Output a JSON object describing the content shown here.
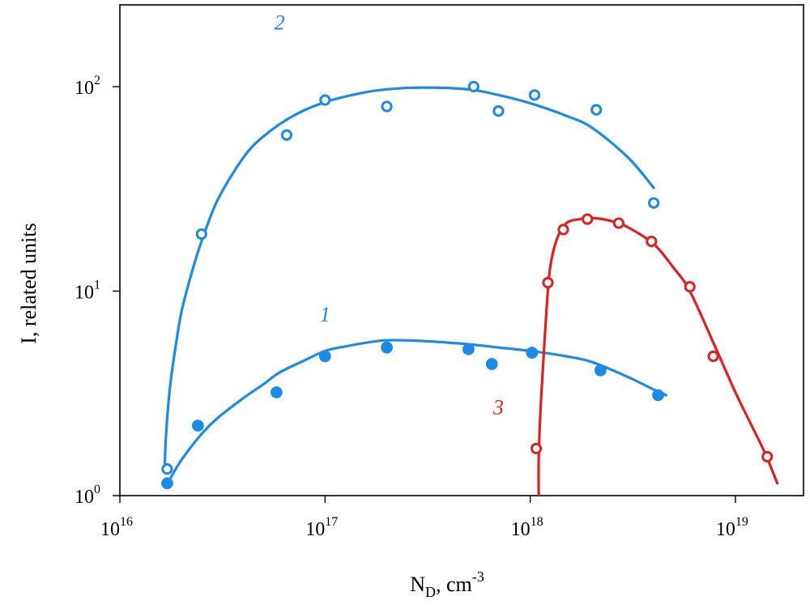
{
  "chart_data": {
    "type": "scatter",
    "title": "",
    "xlabel": {
      "base": "N",
      "sub": "D",
      "rest": ", cm",
      "sup": "-3"
    },
    "ylabel": "I, related units",
    "x_scale": "log",
    "y_scale": "log",
    "xlim": [
      1e+16,
      2e+19
    ],
    "ylim": [
      1,
      300
    ],
    "grid": false,
    "legend": "none",
    "x_ticks": [
      {
        "value": 1e+16,
        "base": "10",
        "exp": "16"
      },
      {
        "value": 1e+17,
        "base": "10",
        "exp": "17"
      },
      {
        "value": 1e+18,
        "base": "10",
        "exp": "18"
      },
      {
        "value": 1e+19,
        "base": "10",
        "exp": "19"
      }
    ],
    "y_ticks": [
      {
        "value": 1,
        "base": "10",
        "exp": "0"
      },
      {
        "value": 10,
        "base": "10",
        "exp": "1"
      },
      {
        "value": 100,
        "base": "10",
        "exp": "2"
      }
    ],
    "series": [
      {
        "label": "1",
        "color": "#1c8be6",
        "marker": "filled-circle",
        "points": [
          [
            1.7e+16,
            1.15
          ],
          [
            2.4e+16,
            2.2
          ],
          [
            5.8e+16,
            3.2
          ],
          [
            1e+17,
            4.8
          ],
          [
            2e+17,
            5.3
          ],
          [
            5e+17,
            5.2
          ],
          [
            6.5e+17,
            4.4
          ],
          [
            1.02e+18,
            5.0
          ],
          [
            2.2e+18,
            4.1
          ],
          [
            4.2e+18,
            3.1
          ]
        ],
        "fit": [
          [
            1.75e+16,
            1.2
          ],
          [
            2e+16,
            1.5
          ],
          [
            2.5e+16,
            2.0
          ],
          [
            3e+16,
            2.4
          ],
          [
            4e+16,
            3.0
          ],
          [
            5e+16,
            3.5
          ],
          [
            6e+16,
            4.0
          ],
          [
            8e+16,
            4.6
          ],
          [
            1e+17,
            5.1
          ],
          [
            1.3e+17,
            5.4
          ],
          [
            1.6e+17,
            5.6
          ],
          [
            2e+17,
            5.75
          ],
          [
            3e+17,
            5.7
          ],
          [
            5e+17,
            5.5
          ],
          [
            7e+17,
            5.3
          ],
          [
            1e+18,
            5.1
          ],
          [
            1.5e+18,
            4.8
          ],
          [
            2e+18,
            4.5
          ],
          [
            3e+18,
            3.8
          ],
          [
            4e+18,
            3.3
          ],
          [
            4.6e+18,
            3.1
          ]
        ]
      },
      {
        "label": "2",
        "color": "#1c8be6",
        "marker": "open-circle",
        "points": [
          [
            1.7e+16,
            1.35
          ],
          [
            2.5e+16,
            19
          ],
          [
            6.5e+16,
            58
          ],
          [
            1e+17,
            86
          ],
          [
            2e+17,
            80
          ],
          [
            5.3e+17,
            100
          ],
          [
            7e+17,
            76
          ],
          [
            1.05e+18,
            91
          ],
          [
            2.1e+18,
            77
          ],
          [
            4e+18,
            27
          ]
        ],
        "fit": [
          [
            1.65e+16,
            1.3
          ],
          [
            1.68e+16,
            2.0
          ],
          [
            1.75e+16,
            3.3
          ],
          [
            1.85e+16,
            5.0
          ],
          [
            2e+16,
            8.0
          ],
          [
            2.25e+16,
            12.5
          ],
          [
            2.5e+16,
            17.5
          ],
          [
            3e+16,
            28
          ],
          [
            4e+16,
            45
          ],
          [
            5e+16,
            57
          ],
          [
            7e+16,
            72
          ],
          [
            1e+17,
            84
          ],
          [
            1.5e+17,
            93
          ],
          [
            2e+17,
            97
          ],
          [
            3e+17,
            99
          ],
          [
            5e+17,
            97
          ],
          [
            7e+17,
            91
          ],
          [
            1e+18,
            83
          ],
          [
            1.5e+18,
            72
          ],
          [
            2e+18,
            63
          ],
          [
            3e+18,
            45
          ],
          [
            4e+18,
            32
          ]
        ]
      },
      {
        "label": "3",
        "color": "#e02020",
        "marker": "open-circle",
        "points": [
          [
            1.07e+18,
            1.7
          ],
          [
            1.22e+18,
            11
          ],
          [
            1.45e+18,
            20
          ],
          [
            1.9e+18,
            22.5
          ],
          [
            2.7e+18,
            21.5
          ],
          [
            3.9e+18,
            17.5
          ],
          [
            6e+18,
            10.5
          ],
          [
            7.8e+18,
            4.8
          ],
          [
            1.43e+19,
            1.55
          ]
        ],
        "fit": [
          [
            1.1e+18,
            1.0
          ],
          [
            1.1e+18,
            1.5
          ],
          [
            1.12e+18,
            2.5
          ],
          [
            1.15e+18,
            4.0
          ],
          [
            1.2e+18,
            8.0
          ],
          [
            1.25e+18,
            13
          ],
          [
            1.35e+18,
            18
          ],
          [
            1.5e+18,
            21.5
          ],
          [
            1.75e+18,
            22.5
          ],
          [
            2e+18,
            22.8
          ],
          [
            2.5e+18,
            22
          ],
          [
            3e+18,
            20.5
          ],
          [
            4e+18,
            17
          ],
          [
            5e+18,
            13
          ],
          [
            6e+18,
            10
          ],
          [
            8e+18,
            5.3
          ],
          [
            1e+19,
            3.2
          ],
          [
            1.2e+19,
            2.2
          ],
          [
            1.4e+19,
            1.6
          ],
          [
            1.6e+19,
            1.15
          ]
        ]
      }
    ],
    "curve_labels": [
      {
        "text": "2",
        "series": 1,
        "x": 6e+16,
        "y": 190
      },
      {
        "text": "1",
        "series": 0,
        "x": 1e+17,
        "y": 7.1
      },
      {
        "text": "3",
        "series": 2,
        "x": 7e+17,
        "y": 2.5
      }
    ]
  }
}
